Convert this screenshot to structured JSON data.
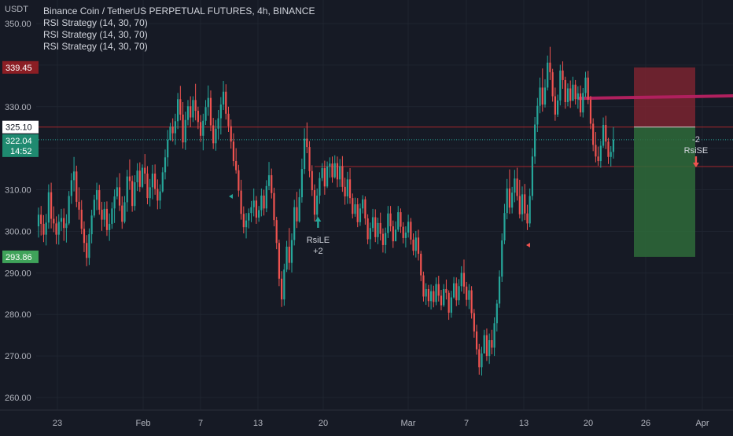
{
  "header": {
    "unit": "USDT",
    "title": "Binance Coin / TetherUS PERPETUAL FUTURES, 4h, BINANCE",
    "indicators": [
      "RSI Strategy (14, 30, 70)",
      "RSI Strategy (14, 30, 70)",
      "RSI Strategy (14, 30, 70)"
    ]
  },
  "colors": {
    "background": "#161a25",
    "up_candle": "#26a69a",
    "down_candle": "#ef5350",
    "stop_zone": "#7a2530",
    "target_zone": "#2e6b3a",
    "trend_line": "#b0205e"
  },
  "chart_data": {
    "type": "candlestick",
    "y_axis": {
      "range": [
        256,
        352
      ],
      "tick_labels": [
        "350.00",
        "330.00",
        "310.00",
        "300.00",
        "290.00",
        "280.00",
        "270.00",
        "260.00"
      ],
      "tick_values": [
        350,
        330,
        310,
        300,
        290,
        280,
        270,
        260
      ]
    },
    "x_axis": {
      "tick_labels": [
        "23",
        "Feb",
        "7",
        "13",
        "20",
        "Mar",
        "7",
        "13",
        "20",
        "26",
        "Apr"
      ]
    },
    "price_tags": [
      {
        "label": "339.45",
        "value": 339.45,
        "color": "#8b1e24"
      },
      {
        "label": "325.10",
        "value": 325.1,
        "color": "#ffffff"
      },
      {
        "label": "322.04",
        "value": 322.04,
        "color": "#1f8a70"
      },
      {
        "label": "14:52",
        "value": 322.04,
        "color": "#1f8a70"
      },
      {
        "label": "293.86",
        "value": 293.86,
        "color": "#3fa35a"
      }
    ],
    "horizontal_lines": [
      {
        "value": 325.1
      },
      {
        "value": 315.6
      }
    ],
    "trend_line": {
      "from": {
        "x": "Mar 4",
        "y": 332.0
      },
      "to": {
        "x": "Apr 4",
        "y": 332.6
      }
    },
    "position": {
      "entry": 325.1,
      "stop": 339.45,
      "target": 293.86
    },
    "signals": [
      {
        "label": "RsiLE",
        "qty": "+2",
        "direction": "long",
        "x": "Feb 12",
        "price": 302.5
      },
      {
        "label": "RsiSE",
        "qty": "-2",
        "direction": "short",
        "x": "Mar 13",
        "price": 315.6
      }
    ],
    "ohlc": [
      [
        301.2,
        305.7,
        298.5,
        304.0
      ],
      [
        304.0,
        306.1,
        299.0,
        301.8
      ],
      [
        301.8,
        303.9,
        297.4,
        299.2
      ],
      [
        299.2,
        304.2,
        296.6,
        302.1
      ],
      [
        302.1,
        311.3,
        300.6,
        309.4
      ],
      [
        309.4,
        311.7,
        300.7,
        303.0
      ],
      [
        303.0,
        306.0,
        299.8,
        301.9
      ],
      [
        301.9,
        303.6,
        296.9,
        299.2
      ],
      [
        299.2,
        304.1,
        296.8,
        302.3
      ],
      [
        302.3,
        305.4,
        300.1,
        303.2
      ],
      [
        303.2,
        305.5,
        297.7,
        300.8
      ],
      [
        300.8,
        304.1,
        297.3,
        301.9
      ],
      [
        301.9,
        309.7,
        301.5,
        308.5
      ],
      [
        308.5,
        314.0,
        306.6,
        312.3
      ],
      [
        312.3,
        317.9,
        309.6,
        314.4
      ],
      [
        314.4,
        315.8,
        305.8,
        307.1
      ],
      [
        307.1,
        310.6,
        302.8,
        305.2
      ],
      [
        305.2,
        307.5,
        299.3,
        300.6
      ],
      [
        300.6,
        302.4,
        295.0,
        297.2
      ],
      [
        297.2,
        299.1,
        291.6,
        293.6
      ],
      [
        293.6,
        300.7,
        291.9,
        299.3
      ],
      [
        299.3,
        305.2,
        297.1,
        303.8
      ],
      [
        303.8,
        308.8,
        303.3,
        307.6
      ],
      [
        307.6,
        311.7,
        305.1,
        309.9
      ],
      [
        309.9,
        311.2,
        304.0,
        305.2
      ],
      [
        305.2,
        307.1,
        300.1,
        302.8
      ],
      [
        302.8,
        307.1,
        301.1,
        305.4
      ],
      [
        305.4,
        307.2,
        298.9,
        300.3
      ],
      [
        300.3,
        304.3,
        297.7,
        301.8
      ],
      [
        301.8,
        307.0,
        300.6,
        305.5
      ],
      [
        305.5,
        310.1,
        302.0,
        308.4
      ],
      [
        308.4,
        313.0,
        307.7,
        310.6
      ],
      [
        310.6,
        314.0,
        304.9,
        306.2
      ],
      [
        306.2,
        308.4,
        300.6,
        302.3
      ],
      [
        302.3,
        308.5,
        301.9,
        307.0
      ],
      [
        307.0,
        314.8,
        304.7,
        313.2
      ],
      [
        313.2,
        317.3,
        310.0,
        312.1
      ],
      [
        312.1,
        313.4,
        304.7,
        306.1
      ],
      [
        306.1,
        313.5,
        305.0,
        311.8
      ],
      [
        311.8,
        316.4,
        309.7,
        314.6
      ],
      [
        314.6,
        316.6,
        309.5,
        310.7
      ],
      [
        310.7,
        316.1,
        310.4,
        315.3
      ],
      [
        315.3,
        318.6,
        311.4,
        313.9
      ],
      [
        313.9,
        315.7,
        306.5,
        308.0
      ],
      [
        308.0,
        312.6,
        306.0,
        310.6
      ],
      [
        310.6,
        316.0,
        307.7,
        313.9
      ],
      [
        313.9,
        316.1,
        308.8,
        310.2
      ],
      [
        310.2,
        312.5,
        305.3,
        307.4
      ],
      [
        307.4,
        311.3,
        305.4,
        309.6
      ],
      [
        309.6,
        315.4,
        309.3,
        314.2
      ],
      [
        314.2,
        319.7,
        312.5,
        317.8
      ],
      [
        317.8,
        324.4,
        315.6,
        322.0
      ],
      [
        322.0,
        326.1,
        321.8,
        325.2
      ],
      [
        325.2,
        327.2,
        321.6,
        323.6
      ],
      [
        323.6,
        328.3,
        320.8,
        326.5
      ],
      [
        326.5,
        333.3,
        324.6,
        331.8
      ],
      [
        331.8,
        335.0,
        326.7,
        328.1
      ],
      [
        328.1,
        331.1,
        319.9,
        321.4
      ],
      [
        321.4,
        328.8,
        319.6,
        326.8
      ],
      [
        326.8,
        331.6,
        325.5,
        330.1
      ],
      [
        330.1,
        332.5,
        325.1,
        327.4
      ],
      [
        327.4,
        332.5,
        326.3,
        331.6
      ],
      [
        331.6,
        335.5,
        326.7,
        329.0
      ],
      [
        329.0,
        330.0,
        324.6,
        326.3
      ],
      [
        326.3,
        328.0,
        321.5,
        323.0
      ],
      [
        323.0,
        328.3,
        319.5,
        326.6
      ],
      [
        326.6,
        331.6,
        325.6,
        329.9
      ],
      [
        329.9,
        335.1,
        327.8,
        332.1
      ],
      [
        332.1,
        333.9,
        324.1,
        325.5
      ],
      [
        325.5,
        327.3,
        319.8,
        321.2
      ],
      [
        321.2,
        326.8,
        319.4,
        324.7
      ],
      [
        324.7,
        329.2,
        322.2,
        327.2
      ],
      [
        327.2,
        332.3,
        323.3,
        330.5
      ],
      [
        330.5,
        336.2,
        329.2,
        333.6
      ],
      [
        333.6,
        335.4,
        326.9,
        328.3
      ],
      [
        328.3,
        330.0,
        323.9,
        325.3
      ],
      [
        325.3,
        326.9,
        319.9,
        321.6
      ],
      [
        321.6,
        323.6,
        315.7,
        316.9
      ],
      [
        316.9,
        320.0,
        313.9,
        314.7
      ],
      [
        314.7,
        316.0,
        308.3,
        309.8
      ],
      [
        309.8,
        312.4,
        302.8,
        304.2
      ],
      [
        304.2,
        306.0,
        299.5,
        301.0
      ],
      [
        301.0,
        304.4,
        298.3,
        302.6
      ],
      [
        302.6,
        305.5,
        300.7,
        304.4
      ],
      [
        304.4,
        307.3,
        302.2,
        305.8
      ],
      [
        305.8,
        310.3,
        303.6,
        307.4
      ],
      [
        307.4,
        308.5,
        301.8,
        303.3
      ],
      [
        303.3,
        306.1,
        302.3,
        305.1
      ],
      [
        305.1,
        310.3,
        303.6,
        308.6
      ],
      [
        308.6,
        310.0,
        303.8,
        305.5
      ],
      [
        305.5,
        312.3,
        304.6,
        310.9
      ],
      [
        310.9,
        316.7,
        309.9,
        313.5
      ],
      [
        313.5,
        315.1,
        307.9,
        309.2
      ],
      [
        309.2,
        310.5,
        301.2,
        302.7
      ],
      [
        302.7,
        303.5,
        295.7,
        297.2
      ],
      [
        297.2,
        298.0,
        286.8,
        288.6
      ],
      [
        288.6,
        290.4,
        281.8,
        283.6
      ],
      [
        283.6,
        292.2,
        282.1,
        290.8
      ],
      [
        290.8,
        297.7,
        290.2,
        296.3
      ],
      [
        296.3,
        300.8,
        290.7,
        292.4
      ],
      [
        292.4,
        299.5,
        290.1,
        297.9
      ],
      [
        297.9,
        307.6,
        296.6,
        305.8
      ],
      [
        305.8,
        309.5,
        300.8,
        302.4
      ],
      [
        302.4,
        310.2,
        302.1,
        308.2
      ],
      [
        308.2,
        317.5,
        306.9,
        315.0
      ],
      [
        315.0,
        324.8,
        313.8,
        322.3
      ],
      [
        322.3,
        326.2,
        318.8,
        320.3
      ],
      [
        320.3,
        321.7,
        313.0,
        314.5
      ],
      [
        314.5,
        315.9,
        308.5,
        309.9
      ],
      [
        309.9,
        311.3,
        302.4,
        304.0
      ],
      [
        304.0,
        310.3,
        302.6,
        308.6
      ],
      [
        308.6,
        314.2,
        306.6,
        312.8
      ],
      [
        312.8,
        316.4,
        312.1,
        315.2
      ],
      [
        315.2,
        317.0,
        308.8,
        310.8
      ],
      [
        310.8,
        316.8,
        310.4,
        315.6
      ],
      [
        315.6,
        317.8,
        312.9,
        316.3
      ],
      [
        316.3,
        318.0,
        311.7,
        313.0
      ],
      [
        313.0,
        318.3,
        312.7,
        316.4
      ],
      [
        316.4,
        318.0,
        310.6,
        312.5
      ],
      [
        312.5,
        317.4,
        310.7,
        315.7
      ],
      [
        315.7,
        318.1,
        309.5,
        310.7
      ],
      [
        310.7,
        312.9,
        306.4,
        308.4
      ],
      [
        308.4,
        314.3,
        306.6,
        312.5
      ],
      [
        312.5,
        315.2,
        306.6,
        308.0
      ],
      [
        308.0,
        309.1,
        303.1,
        304.2
      ],
      [
        304.2,
        308.1,
        303.5,
        306.5
      ],
      [
        306.5,
        308.0,
        301.0,
        302.2
      ],
      [
        302.2,
        306.7,
        301.3,
        305.5
      ],
      [
        305.5,
        308.7,
        304.3,
        307.7
      ],
      [
        307.7,
        308.4,
        301.6,
        303.1
      ],
      [
        303.1,
        304.1,
        296.9,
        298.1
      ],
      [
        298.1,
        302.1,
        295.7,
        300.8
      ],
      [
        300.8,
        305.4,
        299.9,
        303.4
      ],
      [
        303.4,
        305.3,
        297.4,
        298.6
      ],
      [
        298.6,
        303.3,
        296.9,
        302.0
      ],
      [
        302.0,
        304.5,
        297.8,
        299.4
      ],
      [
        299.4,
        300.7,
        294.9,
        296.7
      ],
      [
        296.7,
        300.9,
        294.7,
        299.6
      ],
      [
        299.6,
        306.1,
        298.4,
        304.3
      ],
      [
        304.3,
        306.1,
        300.0,
        301.2
      ],
      [
        301.2,
        302.6,
        296.0,
        297.6
      ],
      [
        297.6,
        302.4,
        297.6,
        300.4
      ],
      [
        300.4,
        306.1,
        299.9,
        304.6
      ],
      [
        304.6,
        305.5,
        299.6,
        301.1
      ],
      [
        301.1,
        302.2,
        297.1,
        298.4
      ],
      [
        298.4,
        301.2,
        296.1,
        299.7
      ],
      [
        299.7,
        304.0,
        298.5,
        302.3
      ],
      [
        302.3,
        303.2,
        296.8,
        298.0
      ],
      [
        298.0,
        299.5,
        294.2,
        295.3
      ],
      [
        295.3,
        300.1,
        293.7,
        298.5
      ],
      [
        298.5,
        300.4,
        293.0,
        294.6
      ],
      [
        294.6,
        295.3,
        288.0,
        289.4
      ],
      [
        289.4,
        290.3,
        283.1,
        284.3
      ],
      [
        284.3,
        287.5,
        282.3,
        286.1
      ],
      [
        286.1,
        287.1,
        281.8,
        283.2
      ],
      [
        283.2,
        287.2,
        281.2,
        285.6
      ],
      [
        285.6,
        286.9,
        281.7,
        283.0
      ],
      [
        283.0,
        288.9,
        282.2,
        287.3
      ],
      [
        287.3,
        289.3,
        283.1,
        284.5
      ],
      [
        284.5,
        285.9,
        281.0,
        282.2
      ],
      [
        282.2,
        287.3,
        281.8,
        286.1
      ],
      [
        286.1,
        288.4,
        283.6,
        285.2
      ],
      [
        285.2,
        285.8,
        278.7,
        280.4
      ],
      [
        280.4,
        285.7,
        279.2,
        284.1
      ],
      [
        284.1,
        289.0,
        283.8,
        287.5
      ],
      [
        287.5,
        288.9,
        282.0,
        283.4
      ],
      [
        283.4,
        288.5,
        282.3,
        286.8
      ],
      [
        286.8,
        291.6,
        285.5,
        290.0
      ],
      [
        290.0,
        293.2,
        285.0,
        286.7
      ],
      [
        286.7,
        287.8,
        282.0,
        283.5
      ],
      [
        283.5,
        287.3,
        281.3,
        285.8
      ],
      [
        285.8,
        286.8,
        279.0,
        280.3
      ],
      [
        280.3,
        281.3,
        274.4,
        275.9
      ],
      [
        275.9,
        277.5,
        270.3,
        271.6
      ],
      [
        271.6,
        272.9,
        265.5,
        267.3
      ],
      [
        267.3,
        272.2,
        265.3,
        270.6
      ],
      [
        270.6,
        276.3,
        270.6,
        275.0
      ],
      [
        275.0,
        276.6,
        268.8,
        270.0
      ],
      [
        270.0,
        275.4,
        268.1,
        273.8
      ],
      [
        273.8,
        276.3,
        270.4,
        272.0
      ],
      [
        272.0,
        279.3,
        270.0,
        277.9
      ],
      [
        277.9,
        283.5,
        275.9,
        282.6
      ],
      [
        282.6,
        290.6,
        281.6,
        289.1
      ],
      [
        289.1,
        299.5,
        287.8,
        297.8
      ],
      [
        297.8,
        306.6,
        296.9,
        304.4
      ],
      [
        304.4,
        312.6,
        302.9,
        310.3
      ],
      [
        310.3,
        314.9,
        304.2,
        305.7
      ],
      [
        305.7,
        310.7,
        304.3,
        309.3
      ],
      [
        309.3,
        314.8,
        307.0,
        312.7
      ],
      [
        312.7,
        315.3,
        307.4,
        308.5
      ],
      [
        308.5,
        312.4,
        303.1,
        304.1
      ],
      [
        304.1,
        310.8,
        302.4,
        308.9
      ],
      [
        308.9,
        311.4,
        302.7,
        304.3
      ],
      [
        304.3,
        306.4,
        300.3,
        301.9
      ],
      [
        301.9,
        310.3,
        301.0,
        308.5
      ],
      [
        308.5,
        320.0,
        307.5,
        318.0
      ],
      [
        318.0,
        327.5,
        316.2,
        325.7
      ],
      [
        325.7,
        332.1,
        323.9,
        330.2
      ],
      [
        330.2,
        337.0,
        328.4,
        334.6
      ],
      [
        334.6,
        339.2,
        328.8,
        330.5
      ],
      [
        330.5,
        336.6,
        329.8,
        334.6
      ],
      [
        334.6,
        342.3,
        333.9,
        340.6
      ],
      [
        340.6,
        344.4,
        336.4,
        338.3
      ],
      [
        338.3,
        339.1,
        331.2,
        332.5
      ],
      [
        332.5,
        334.6,
        326.6,
        328.1
      ],
      [
        328.1,
        332.9,
        327.5,
        331.5
      ],
      [
        331.5,
        340.1,
        330.3,
        338.7
      ],
      [
        338.7,
        340.9,
        334.3,
        336.4
      ],
      [
        336.4,
        337.2,
        329.5,
        331.1
      ],
      [
        331.1,
        335.6,
        330.1,
        334.4
      ],
      [
        334.4,
        336.3,
        329.7,
        331.4
      ],
      [
        331.4,
        337.2,
        331.4,
        335.3
      ],
      [
        335.3,
        336.4,
        330.5,
        331.8
      ],
      [
        331.8,
        334.9,
        329.5,
        333.2
      ],
      [
        333.2,
        335.1,
        327.6,
        328.6
      ],
      [
        328.6,
        334.5,
        327.4,
        333.3
      ],
      [
        333.3,
        338.4,
        332.3,
        337.0
      ],
      [
        337.0,
        338.6,
        330.6,
        331.7
      ],
      [
        331.7,
        332.6,
        324.6,
        325.9
      ],
      [
        325.9,
        327.2,
        319.3,
        320.8
      ],
      [
        320.8,
        323.9,
        316.6,
        318.0
      ],
      [
        318.0,
        320.4,
        315.8,
        316.9
      ],
      [
        316.9,
        321.8,
        315.3,
        320.6
      ],
      [
        320.6,
        327.4,
        320.1,
        325.6
      ],
      [
        325.6,
        327.8,
        319.8,
        321.6
      ],
      [
        321.6,
        322.5,
        316.2,
        317.9
      ],
      [
        317.9,
        320.5,
        315.6,
        319.1
      ],
      [
        319.1,
        325.1,
        317.5,
        322.04
      ]
    ]
  }
}
